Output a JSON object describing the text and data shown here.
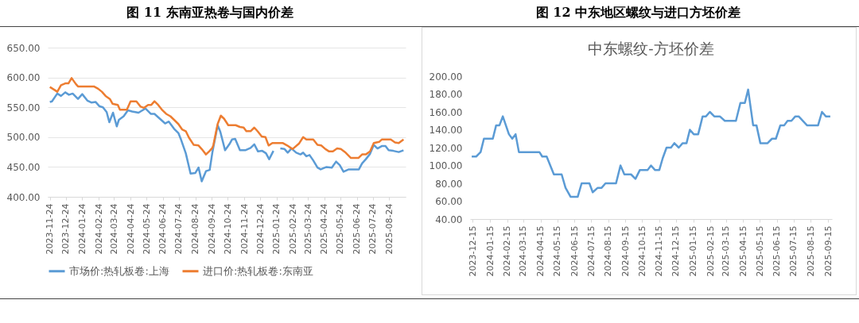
{
  "chart_data": [
    {
      "type": "line",
      "title": "图 11 东南亚热卷与国内价差",
      "xlim": [
        "2023-11-20",
        "2025-09-24"
      ],
      "xticks": [
        "2023-11-24",
        "2023-12-24",
        "2024-01-24",
        "2024-02-24",
        "2024-03-24",
        "2024-04-24",
        "2024-05-24",
        "2024-06-24",
        "2024-07-24",
        "2024-08-24",
        "2024-09-24",
        "2024-10-24",
        "2024-11-24",
        "2024-12-24",
        "2025-01-24",
        "2025-02-24",
        "2025-03-24",
        "2025-04-24",
        "2025-05-24",
        "2025-06-24",
        "2025-07-24",
        "2025-08-24"
      ],
      "ylim": [
        400,
        650
      ],
      "yticks": [
        {
          "value": 400,
          "label": "400.00"
        },
        {
          "value": 450,
          "label": "450.00"
        },
        {
          "value": 500,
          "label": "500.00"
        },
        {
          "value": 550,
          "label": "550.00"
        },
        {
          "value": 600,
          "label": "600.00"
        },
        {
          "value": 650,
          "label": "650.00"
        }
      ],
      "grid": "y",
      "legend": "bottom",
      "series": [
        {
          "name": "市场价:热轧板卷:上海",
          "color": "#5b9bd5",
          "x": [
            "2023-11-24",
            "2023-11-28",
            "2023-12-08",
            "2023-12-15",
            "2023-12-23",
            "2023-12-30",
            "2024-01-06",
            "2024-01-16",
            "2024-01-24",
            "2024-02-03",
            "2024-02-10",
            "2024-02-18",
            "2024-02-25",
            "2024-03-03",
            "2024-03-10",
            "2024-03-15",
            "2024-03-22",
            "2024-03-29",
            "2024-04-02",
            "2024-04-11",
            "2024-04-19",
            "2024-04-27",
            "2024-05-09",
            "2024-05-22",
            "2024-06-01",
            "2024-06-08",
            "2024-06-18",
            "2024-06-28",
            "2024-07-05",
            "2024-07-15",
            "2024-07-23",
            "2024-07-28",
            "2024-08-06",
            "2024-08-15",
            "2024-08-24",
            "2024-08-30",
            "2024-09-05",
            "2024-09-13",
            "2024-09-20",
            "2024-09-25",
            "2024-10-05",
            "2024-10-10",
            "2024-10-19",
            "2024-10-27",
            "2024-11-01",
            "2024-11-07",
            "2024-11-16",
            "2024-11-26",
            "2024-12-06",
            "2024-12-13",
            "2024-12-20",
            "2024-12-28",
            "2025-01-04",
            "2025-01-10",
            "2025-01-18",
            "2025-01-24",
            "2025-01-31",
            "2025-02-08",
            "2025-02-14",
            "2025-02-21",
            "2025-03-02",
            "2025-03-10",
            "2025-03-15",
            "2025-03-21",
            "2025-03-27",
            "2025-04-03",
            "2025-04-11",
            "2025-04-17",
            "2025-04-28",
            "2025-05-08",
            "2025-05-16",
            "2025-05-23",
            "2025-05-30",
            "2025-06-09",
            "2025-06-19",
            "2025-06-28",
            "2025-07-04",
            "2025-07-11",
            "2025-07-19",
            "2025-07-26",
            "2025-08-02",
            "2025-08-10",
            "2025-08-17",
            "2025-08-23",
            "2025-09-01",
            "2025-09-11",
            "2025-09-20"
          ],
          "values": [
            559,
            560,
            573,
            569,
            575,
            571,
            573,
            564,
            572,
            561,
            558,
            559,
            552,
            550,
            542,
            525,
            541,
            518,
            529,
            535,
            545,
            543,
            541,
            548,
            539,
            539,
            531,
            523,
            526,
            514,
            507,
            496,
            473,
            439,
            440,
            449,
            426,
            443,
            445,
            474,
            520,
            509,
            478,
            488,
            496,
            497,
            478,
            478,
            482,
            488,
            476,
            477,
            473,
            463,
            477,
            null,
            481,
            480,
            474,
            481,
            474,
            471,
            474,
            468,
            470,
            461,
            449,
            446,
            450,
            449,
            459,
            453,
            442,
            446,
            446,
            446,
            456,
            463,
            472,
            487,
            481,
            485,
            485,
            478,
            477,
            475,
            478
          ]
        },
        {
          "name": "进口价:热轧板卷:东南亚",
          "color": "#ed7d31",
          "x": [
            "2023-11-24",
            "2023-12-03",
            "2023-12-08",
            "2023-12-15",
            "2023-12-23",
            "2023-12-29",
            "2024-01-04",
            "2024-01-12",
            "2024-01-16",
            "2024-01-31",
            "2024-02-15",
            "2024-02-23",
            "2024-03-01",
            "2024-03-08",
            "2024-03-16",
            "2024-03-21",
            "2024-03-31",
            "2024-04-04",
            "2024-04-17",
            "2024-04-24",
            "2024-05-05",
            "2024-05-13",
            "2024-05-19",
            "2024-05-27",
            "2024-06-02",
            "2024-06-08",
            "2024-06-15",
            "2024-06-23",
            "2024-06-30",
            "2024-07-08",
            "2024-07-15",
            "2024-07-23",
            "2024-07-30",
            "2024-08-06",
            "2024-08-12",
            "2024-08-21",
            "2024-08-30",
            "2024-09-05",
            "2024-09-13",
            "2024-09-20",
            "2024-09-25",
            "2024-09-27",
            "2024-10-05",
            "2024-10-11",
            "2024-10-17",
            "2024-10-25",
            "2024-11-08",
            "2024-11-16",
            "2024-11-23",
            "2024-11-28",
            "2024-12-06",
            "2024-12-13",
            "2024-12-20",
            "2024-12-27",
            "2025-01-03",
            "2025-01-09",
            "2025-01-16",
            "2025-02-05",
            "2025-02-13",
            "2025-02-23",
            "2025-03-07",
            "2025-03-15",
            "2025-03-21",
            "2025-04-03",
            "2025-04-11",
            "2025-04-18",
            "2025-04-26",
            "2025-05-03",
            "2025-05-10",
            "2025-05-18",
            "2025-05-25",
            "2025-06-03",
            "2025-06-13",
            "2025-06-27",
            "2025-07-04",
            "2025-07-11",
            "2025-07-19",
            "2025-07-26",
            "2025-08-05",
            "2025-08-10",
            "2025-08-27",
            "2025-09-04",
            "2025-09-11",
            "2025-09-20"
          ],
          "values": [
            584,
            579,
            576,
            587,
            590,
            590,
            599,
            589,
            585,
            585,
            585,
            581,
            576,
            569,
            564,
            556,
            554,
            546,
            546,
            560,
            560,
            551,
            549,
            554,
            554,
            560,
            554,
            545,
            539,
            535,
            529,
            522,
            513,
            510,
            499,
            487,
            486,
            480,
            471,
            477,
            482,
            487,
            522,
            536,
            531,
            520,
            520,
            517,
            516,
            510,
            510,
            516,
            509,
            501,
            500,
            486,
            490,
            490,
            486,
            480,
            489,
            500,
            496,
            496,
            487,
            486,
            480,
            476,
            476,
            481,
            480,
            474,
            465,
            465,
            471,
            471,
            476,
            490,
            492,
            496,
            496,
            491,
            490,
            496
          ]
        }
      ]
    },
    {
      "type": "line",
      "title": "图 12 中东地区螺纹与进口方坯价差",
      "subtitle": "中东螺纹-方坯价差",
      "xlim": [
        "2023-12-10",
        "2025-09-22"
      ],
      "xticks": [
        "2023-12-15",
        "2024-01-15",
        "2024-02-15",
        "2024-03-15",
        "2024-04-15",
        "2024-05-15",
        "2024-06-15",
        "2024-07-15",
        "2024-08-15",
        "2024-09-15",
        "2024-10-15",
        "2024-11-15",
        "2024-12-15",
        "2025-01-15",
        "2025-02-15",
        "2025-03-15",
        "2025-04-15",
        "2025-05-15",
        "2025-06-15",
        "2025-07-15",
        "2025-08-15",
        "2025-09-15"
      ],
      "ylim": [
        40,
        200
      ],
      "yticks": [
        {
          "value": 40,
          "label": "40.00"
        },
        {
          "value": 60,
          "label": "60.00"
        },
        {
          "value": 80,
          "label": "80.00"
        },
        {
          "value": 100,
          "label": "100.00"
        },
        {
          "value": 120,
          "label": "120.00"
        },
        {
          "value": 140,
          "label": "140.00"
        },
        {
          "value": 160,
          "label": "160.00"
        },
        {
          "value": 180,
          "label": "180.00"
        },
        {
          "value": 200,
          "label": "200.00"
        }
      ],
      "series": [
        {
          "color": "#5b9bd5",
          "x": [
            "2023-12-13",
            "2023-12-21",
            "2023-12-29",
            "2024-01-04",
            "2024-01-20",
            "2024-01-26",
            "2024-02-01",
            "2024-02-07",
            "2024-02-18",
            "2024-02-24",
            "2024-03-01",
            "2024-03-07",
            "2024-04-13",
            "2024-04-18",
            "2024-04-26",
            "2024-05-09",
            "2024-05-23",
            "2024-05-30",
            "2024-06-08",
            "2024-06-21",
            "2024-06-28",
            "2024-07-12",
            "2024-07-18",
            "2024-07-27",
            "2024-08-03",
            "2024-08-10",
            "2024-08-29",
            "2024-09-06",
            "2024-09-13",
            "2024-09-25",
            "2024-10-03",
            "2024-10-11",
            "2024-10-25",
            "2024-10-31",
            "2024-11-07",
            "2024-11-15",
            "2024-11-21",
            "2024-11-28",
            "2024-12-06",
            "2024-12-12",
            "2024-12-20",
            "2024-12-27",
            "2025-01-03",
            "2025-01-09",
            "2025-01-16",
            "2025-01-24",
            "2025-02-01",
            "2025-02-07",
            "2025-02-14",
            "2025-02-22",
            "2025-03-04",
            "2025-03-13",
            "2025-04-02",
            "2025-04-10",
            "2025-04-18",
            "2025-04-24",
            "2025-05-03",
            "2025-05-09",
            "2025-05-16",
            "2025-05-29",
            "2025-06-06",
            "2025-06-13",
            "2025-06-21",
            "2025-06-28",
            "2025-07-04",
            "2025-07-11",
            "2025-07-18",
            "2025-07-24",
            "2025-08-08",
            "2025-08-28",
            "2025-09-04",
            "2025-09-11",
            "2025-09-19"
          ],
          "values": [
            110,
            110,
            115,
            130,
            130,
            145,
            145,
            155,
            135,
            130,
            135,
            115,
            115,
            110,
            110,
            90,
            90,
            75,
            65,
            65,
            80,
            80,
            70,
            75,
            75,
            80,
            80,
            100,
            90,
            90,
            85,
            95,
            95,
            100,
            95,
            95,
            108,
            120,
            120,
            125,
            120,
            125,
            125,
            140,
            135,
            135,
            155,
            155,
            160,
            155,
            155,
            150,
            150,
            170,
            170,
            185,
            145,
            145,
            125,
            125,
            130,
            130,
            145,
            145,
            150,
            150,
            155,
            155,
            145,
            145,
            160,
            155,
            155
          ]
        }
      ]
    }
  ]
}
